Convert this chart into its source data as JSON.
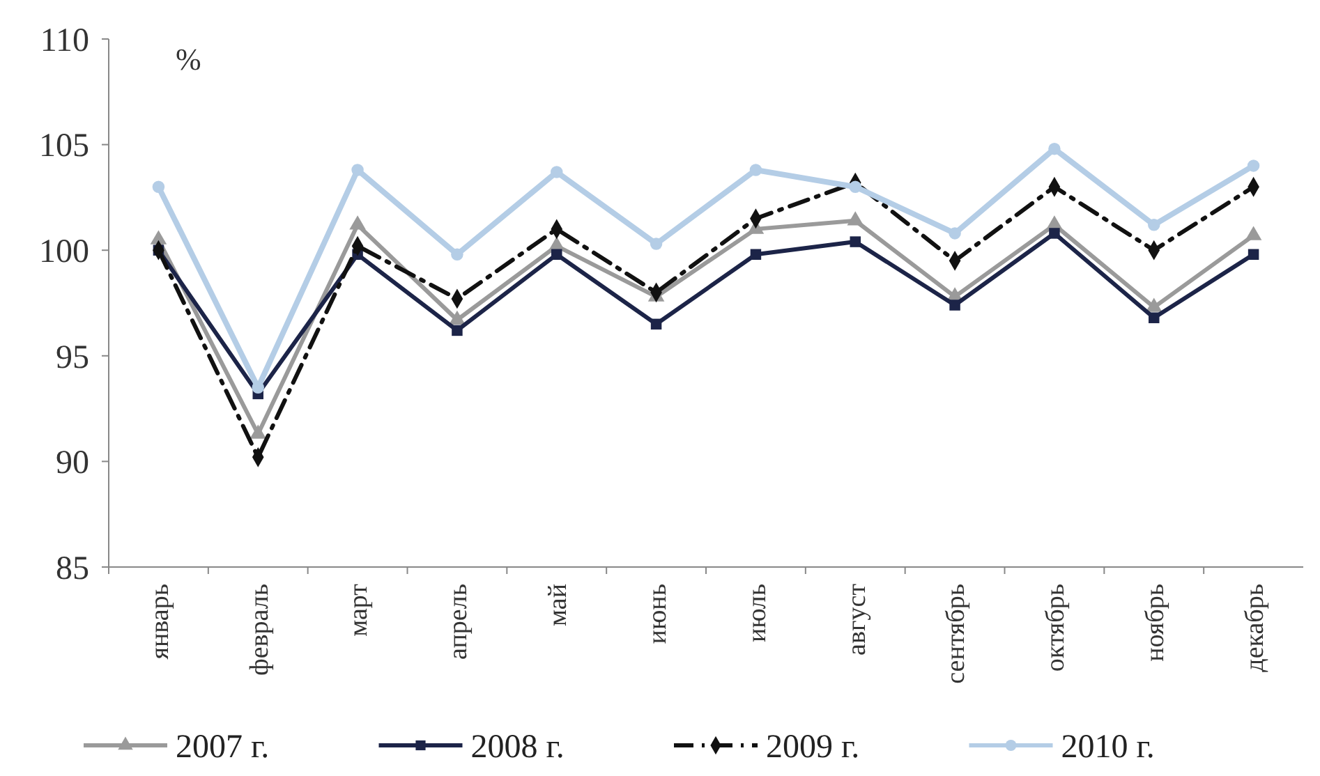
{
  "chart_data": {
    "type": "line",
    "ylabel": "%",
    "categories": [
      "январь",
      "февраль",
      "март",
      "апрель",
      "май",
      "июнь",
      "июль",
      "август",
      "сентябрь",
      "октябрь",
      "ноябрь",
      "декабрь"
    ],
    "ylim": [
      85,
      110
    ],
    "yticks": [
      85,
      90,
      95,
      100,
      105,
      110
    ],
    "grid": false,
    "legend": "bottom",
    "series": [
      {
        "name": "2007 г.",
        "color": "#9a9a9a",
        "marker": "triangle",
        "line_style": "solid",
        "values": [
          100.5,
          91.3,
          101.2,
          96.7,
          100.2,
          97.8,
          101,
          101.4,
          97.8,
          101.2,
          97.3,
          100.7
        ]
      },
      {
        "name": "2008 г.",
        "color": "#1c2448",
        "marker": "square",
        "line_style": "solid",
        "values": [
          100,
          93.2,
          99.8,
          96.2,
          99.8,
          96.5,
          99.8,
          100.4,
          97.4,
          100.8,
          96.8,
          99.8
        ]
      },
      {
        "name": "2009 г.",
        "color": "#111111",
        "marker": "diamond",
        "line_style": "dashed",
        "values": [
          100,
          90.2,
          100.2,
          97.7,
          101,
          98,
          101.5,
          103.2,
          99.5,
          103,
          100,
          103
        ]
      },
      {
        "name": "2010 г.",
        "color": "#b4cde6",
        "marker": "circle",
        "line_style": "solid",
        "values": [
          103,
          93.5,
          103.8,
          99.8,
          103.7,
          100.3,
          103.8,
          103,
          100.8,
          104.8,
          101.2,
          104
        ]
      }
    ]
  }
}
